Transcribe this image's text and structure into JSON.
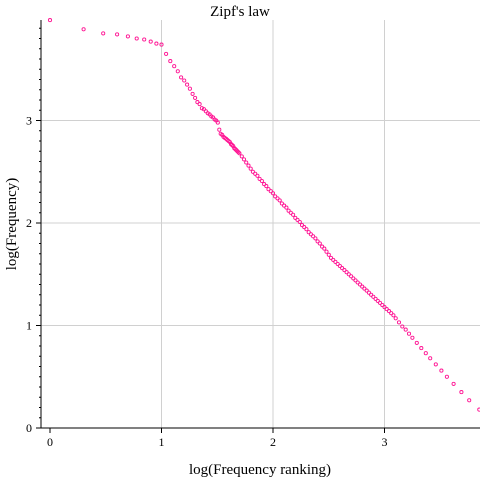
{
  "chart_data": {
    "type": "scatter",
    "title": "Zipf's law",
    "xlabel": "log(Frequency ranking)",
    "ylabel": "log(Frequency)",
    "xlim": [
      0,
      3.85
    ],
    "ylim": [
      0,
      3.95
    ],
    "xticks": [
      0,
      1,
      2,
      3
    ],
    "yticks": [
      0,
      1,
      2,
      3
    ],
    "grid": true,
    "marker": "hollow-circle",
    "color": "#ff1493",
    "points": {
      "x": [
        0.0,
        0.301,
        0.477,
        0.602,
        0.699,
        0.778,
        0.845,
        0.903,
        0.954,
        1.0,
        1.041,
        1.079,
        1.114,
        1.146,
        1.176,
        1.204,
        1.23,
        1.255,
        1.279,
        1.301,
        1.322,
        1.342,
        1.362,
        1.38,
        1.398,
        1.415,
        1.431,
        1.447,
        1.462,
        1.477,
        1.491,
        1.505,
        1.518,
        1.531,
        1.544,
        1.556,
        1.568,
        1.58,
        1.591,
        1.602,
        1.613,
        1.623,
        1.633,
        1.643,
        1.653,
        1.663,
        1.672,
        1.681,
        1.69,
        1.699,
        1.72,
        1.74,
        1.76,
        1.78,
        1.8,
        1.82,
        1.84,
        1.86,
        1.88,
        1.9,
        1.92,
        1.94,
        1.96,
        1.98,
        2.0,
        2.02,
        2.04,
        2.06,
        2.08,
        2.1,
        2.12,
        2.14,
        2.16,
        2.18,
        2.2,
        2.22,
        2.24,
        2.26,
        2.28,
        2.3,
        2.32,
        2.34,
        2.36,
        2.38,
        2.4,
        2.42,
        2.44,
        2.46,
        2.48,
        2.5,
        2.52,
        2.54,
        2.56,
        2.58,
        2.6,
        2.62,
        2.64,
        2.66,
        2.68,
        2.7,
        2.72,
        2.74,
        2.76,
        2.78,
        2.8,
        2.82,
        2.84,
        2.86,
        2.88,
        2.9,
        2.92,
        2.94,
        2.96,
        2.98,
        3.0,
        3.02,
        3.04,
        3.06,
        3.08,
        3.1,
        3.13,
        3.16,
        3.19,
        3.22,
        3.25,
        3.29,
        3.33,
        3.37,
        3.41,
        3.46,
        3.51,
        3.56,
        3.62,
        3.69,
        3.76,
        3.85
      ],
      "y": [
        3.98,
        3.89,
        3.85,
        3.84,
        3.82,
        3.8,
        3.79,
        3.77,
        3.75,
        3.74,
        3.65,
        3.58,
        3.53,
        3.48,
        3.42,
        3.39,
        3.35,
        3.31,
        3.26,
        3.22,
        3.18,
        3.16,
        3.12,
        3.11,
        3.09,
        3.07,
        3.06,
        3.04,
        3.03,
        3.01,
        3.0,
        2.98,
        2.91,
        2.87,
        2.86,
        2.84,
        2.83,
        2.82,
        2.81,
        2.8,
        2.79,
        2.77,
        2.76,
        2.75,
        2.73,
        2.72,
        2.71,
        2.7,
        2.69,
        2.68,
        2.65,
        2.62,
        2.59,
        2.56,
        2.53,
        2.5,
        2.48,
        2.46,
        2.43,
        2.41,
        2.38,
        2.36,
        2.33,
        2.31,
        2.29,
        2.26,
        2.24,
        2.22,
        2.19,
        2.17,
        2.15,
        2.12,
        2.1,
        2.08,
        2.05,
        2.03,
        2.01,
        1.98,
        1.96,
        1.94,
        1.91,
        1.89,
        1.87,
        1.85,
        1.82,
        1.8,
        1.77,
        1.75,
        1.72,
        1.69,
        1.66,
        1.64,
        1.62,
        1.6,
        1.58,
        1.56,
        1.54,
        1.52,
        1.5,
        1.48,
        1.46,
        1.44,
        1.42,
        1.4,
        1.38,
        1.36,
        1.34,
        1.32,
        1.3,
        1.28,
        1.26,
        1.24,
        1.22,
        1.2,
        1.18,
        1.16,
        1.14,
        1.12,
        1.1,
        1.07,
        1.03,
        0.99,
        0.96,
        0.92,
        0.88,
        0.83,
        0.78,
        0.73,
        0.68,
        0.62,
        0.56,
        0.5,
        0.43,
        0.35,
        0.27,
        0.18
      ]
    }
  }
}
